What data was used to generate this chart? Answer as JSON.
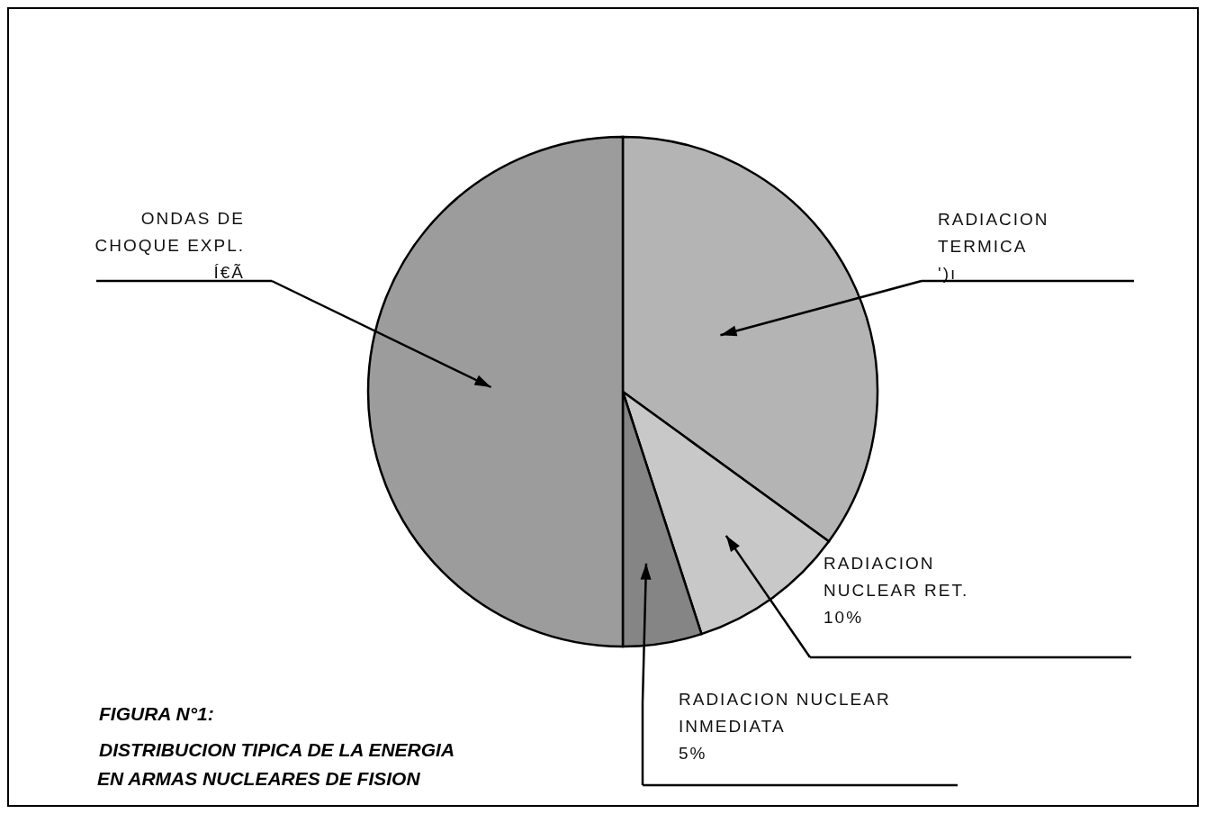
{
  "chart_data": {
    "type": "pie",
    "title": "FIGURA N°1:",
    "subtitle": "DISTRIBUCION TIPICA DE LA ENERGIA EN ARMAS NUCLEARES DE FISION",
    "categories": [
      "RADIACION TERMICA",
      "RADIACION NUCLEAR RET.",
      "RADIACION NUCLEAR INMEDIATA",
      "ONDAS DE CHOQUE EXPL."
    ],
    "values": [
      35,
      10,
      5,
      50
    ],
    "value_labels": [
      "')ı",
      "10%",
      "5%",
      "Í€Ã"
    ],
    "colors": [
      "#b4b4b4",
      "#c8c8c8",
      "#858585",
      "#9c9c9c"
    ]
  }
}
